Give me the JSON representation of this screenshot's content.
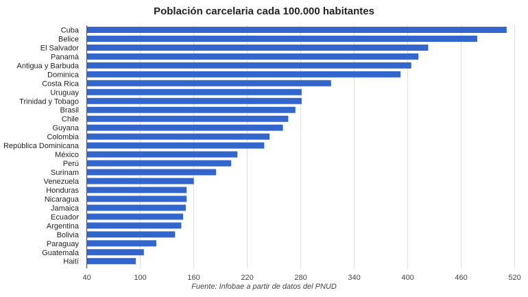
{
  "chart_data": {
    "type": "bar",
    "orientation": "horizontal",
    "title": "Población carcelaria cada 100.000 habitantes",
    "source": "Fuente: Infobae a partir de datos del PNUD",
    "categories": [
      "Cuba",
      "Belice",
      "El Salvador",
      "Panamá",
      "Antigua y Barbuda",
      "Dominica",
      "Costa Rica",
      "Uruguay",
      "Trinidad y Tobago",
      "Brasil",
      "Chile",
      "Guyana",
      "Colombia",
      "República Dominicana",
      "México",
      "Perú",
      "Surinam",
      "Venezuela",
      "Honduras",
      "Nicaragua",
      "Jamaica",
      "Ecuador",
      "Argentina",
      "Bolivia",
      "Paraguay",
      "Guatemala",
      "Haití"
    ],
    "values": [
      511,
      478,
      423,
      412,
      404,
      392,
      314,
      281,
      281,
      274,
      266,
      260,
      245,
      239,
      209,
      202,
      185,
      160,
      152,
      152,
      151,
      148,
      146,
      139,
      118,
      104,
      95
    ],
    "xlim": [
      40,
      540
    ],
    "xticks": [
      40,
      100,
      160,
      220,
      280,
      340,
      400,
      460,
      520
    ],
    "grid": true,
    "color": "#3366cc"
  }
}
